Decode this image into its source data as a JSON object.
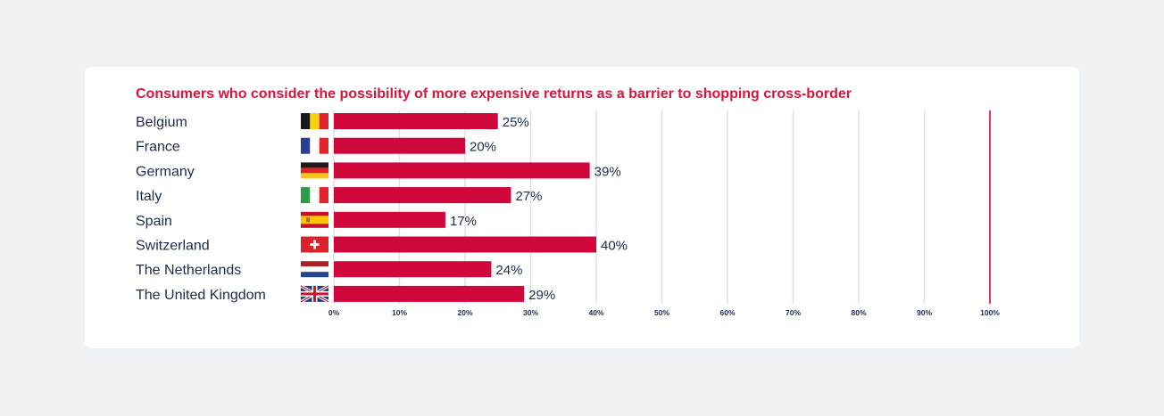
{
  "chart_data": {
    "type": "bar",
    "orientation": "horizontal",
    "title": "Consumers who consider the possibility of more expensive returns as a barrier to shopping cross-border",
    "categories": [
      "Belgium",
      "France",
      "Germany",
      "Italy",
      "Spain",
      "Switzerland",
      "The Netherlands",
      "The United Kingdom"
    ],
    "values": [
      25,
      20,
      39,
      27,
      17,
      40,
      24,
      29
    ],
    "value_labels": [
      "25%",
      "20%",
      "39%",
      "27%",
      "17%",
      "40%",
      "24%",
      "29%"
    ],
    "flags": [
      "belgium-flag",
      "france-flag",
      "germany-flag",
      "italy-flag",
      "spain-flag",
      "switzerland-flag",
      "netherlands-flag",
      "uk-flag"
    ],
    "xlim": [
      0,
      100
    ],
    "xticks": [
      "0%",
      "10%",
      "20%",
      "30%",
      "40%",
      "50%",
      "60%",
      "70%",
      "80%",
      "90%",
      "100%"
    ],
    "grid": true,
    "colors": {
      "bar": "#d0073a",
      "title": "#d6163b",
      "text": "#1c2a4f",
      "grid": "#dcdfe5",
      "axis_end": "#d0073a"
    }
  }
}
